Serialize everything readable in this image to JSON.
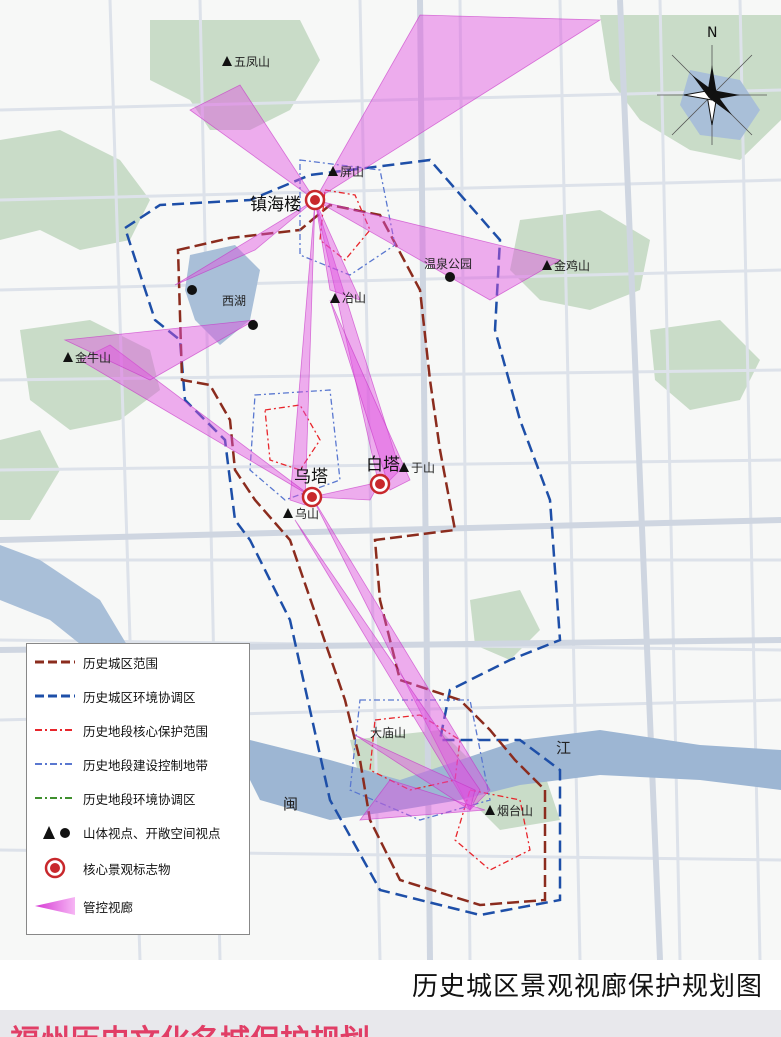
{
  "map": {
    "title": "历史城区景观视廊保护规划图",
    "north_label": "N",
    "colors": {
      "background": "#f7f8f7",
      "hill": "#c9dcc8",
      "water": "#a9bfd8",
      "river": "#9db6d3",
      "road": "#d8dde6",
      "historic_city_boundary": "#8b2c1e",
      "environment_coordination": "#1e4fa8",
      "core_protection": "#e8262c",
      "construction_control": "#5a78d0",
      "district_environment": "#3f8f2e",
      "sightline_fill": "#e14fe0",
      "landmark": "#c8282c"
    },
    "landmarks": [
      {
        "name": "镇海楼"
      },
      {
        "name": "乌塔"
      },
      {
        "name": "白塔"
      }
    ],
    "mountains": [
      {
        "name": "五凤山"
      },
      {
        "name": "屏山"
      },
      {
        "name": "冶山"
      },
      {
        "name": "金鸡山"
      },
      {
        "name": "金牛山"
      },
      {
        "name": "于山"
      },
      {
        "name": "乌山"
      },
      {
        "name": "大庙山"
      },
      {
        "name": "烟台山"
      }
    ],
    "open_spaces": [
      {
        "name": "温泉公园"
      },
      {
        "name": "西湖"
      }
    ],
    "rivers": [
      {
        "name": "闽"
      },
      {
        "name": "江"
      }
    ]
  },
  "legend": {
    "items": [
      {
        "label": "历史城区范围",
        "symbol": "brown-dash"
      },
      {
        "label": "历史城区环境协调区",
        "symbol": "blue-dash"
      },
      {
        "label": "历史地段核心保护范围",
        "symbol": "red-dashdot"
      },
      {
        "label": "历史地段建设控制地带",
        "symbol": "lightblue-dashdot"
      },
      {
        "label": "历史地段环境协调区",
        "symbol": "green-dashdot"
      },
      {
        "label": "山体视点、开敞空间视点",
        "symbol": "triangle-dot"
      },
      {
        "label": "核心景观标志物",
        "symbol": "landmark-circle"
      },
      {
        "label": "管控视廊",
        "symbol": "sightline-wedge"
      }
    ]
  },
  "banner": {
    "text": "福州历史文化名城保护规划"
  }
}
